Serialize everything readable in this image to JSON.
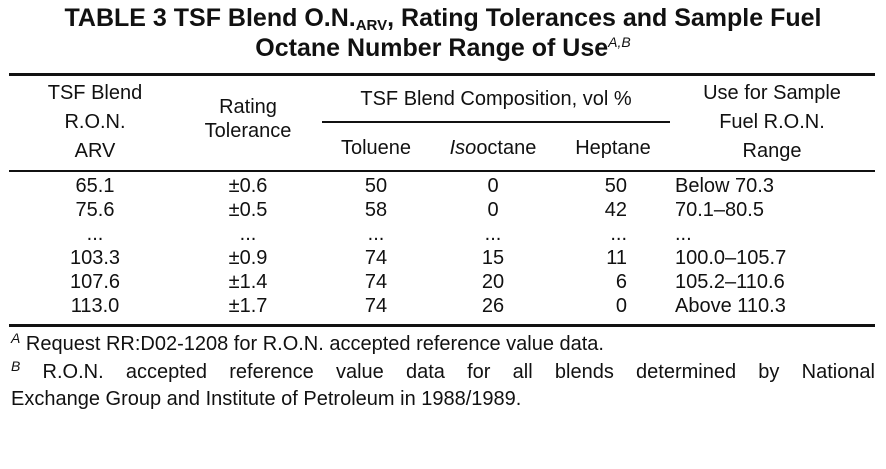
{
  "title": {
    "line1_prefix": "TABLE 3 TSF Blend O.N.",
    "line1_sub": "ARV",
    "line1_suffix": ", Rating Tolerances and Sample Fuel",
    "line2": "Octane Number Range of Use",
    "line2_sup": "A,B"
  },
  "headers": {
    "col1": [
      "TSF Blend",
      "R.O.N.",
      "ARV"
    ],
    "col2": [
      "Rating",
      "Tolerance"
    ],
    "group": "TSF Blend Composition, vol %",
    "toluene": "Toluene",
    "isooctane_italic": "Iso",
    "isooctane_rest": "octane",
    "heptane": "Heptane",
    "col6": [
      "Use for Sample",
      "Fuel R.O.N.",
      "Range"
    ]
  },
  "rows": [
    [
      "65.1",
      "±0.6",
      "50",
      "0",
      "50",
      "Below 70.3"
    ],
    [
      "75.6",
      "±0.5",
      "58",
      "0",
      "42",
      "70.1–80.5"
    ],
    [
      "...",
      "...",
      "...",
      "...",
      "...",
      "..."
    ],
    [
      "103.3",
      "±0.9",
      "74",
      "15",
      "11",
      "100.0–105.7"
    ],
    [
      "107.6",
      "±1.4",
      "74",
      "20",
      "6",
      "105.2–110.6"
    ],
    [
      "113.0",
      "±1.7",
      "74",
      "26",
      "0",
      "Above 110.3"
    ]
  ],
  "footnotes": {
    "a_mark": "A",
    "a_text": " Request RR:D02-1208 for R.O.N. accepted reference value data.",
    "b_mark": "B",
    "b_line1": " R.O.N. accepted reference value data for all blends determined by National",
    "b_line2": "Exchange Group and Institute of Petroleum in 1988/1989."
  }
}
